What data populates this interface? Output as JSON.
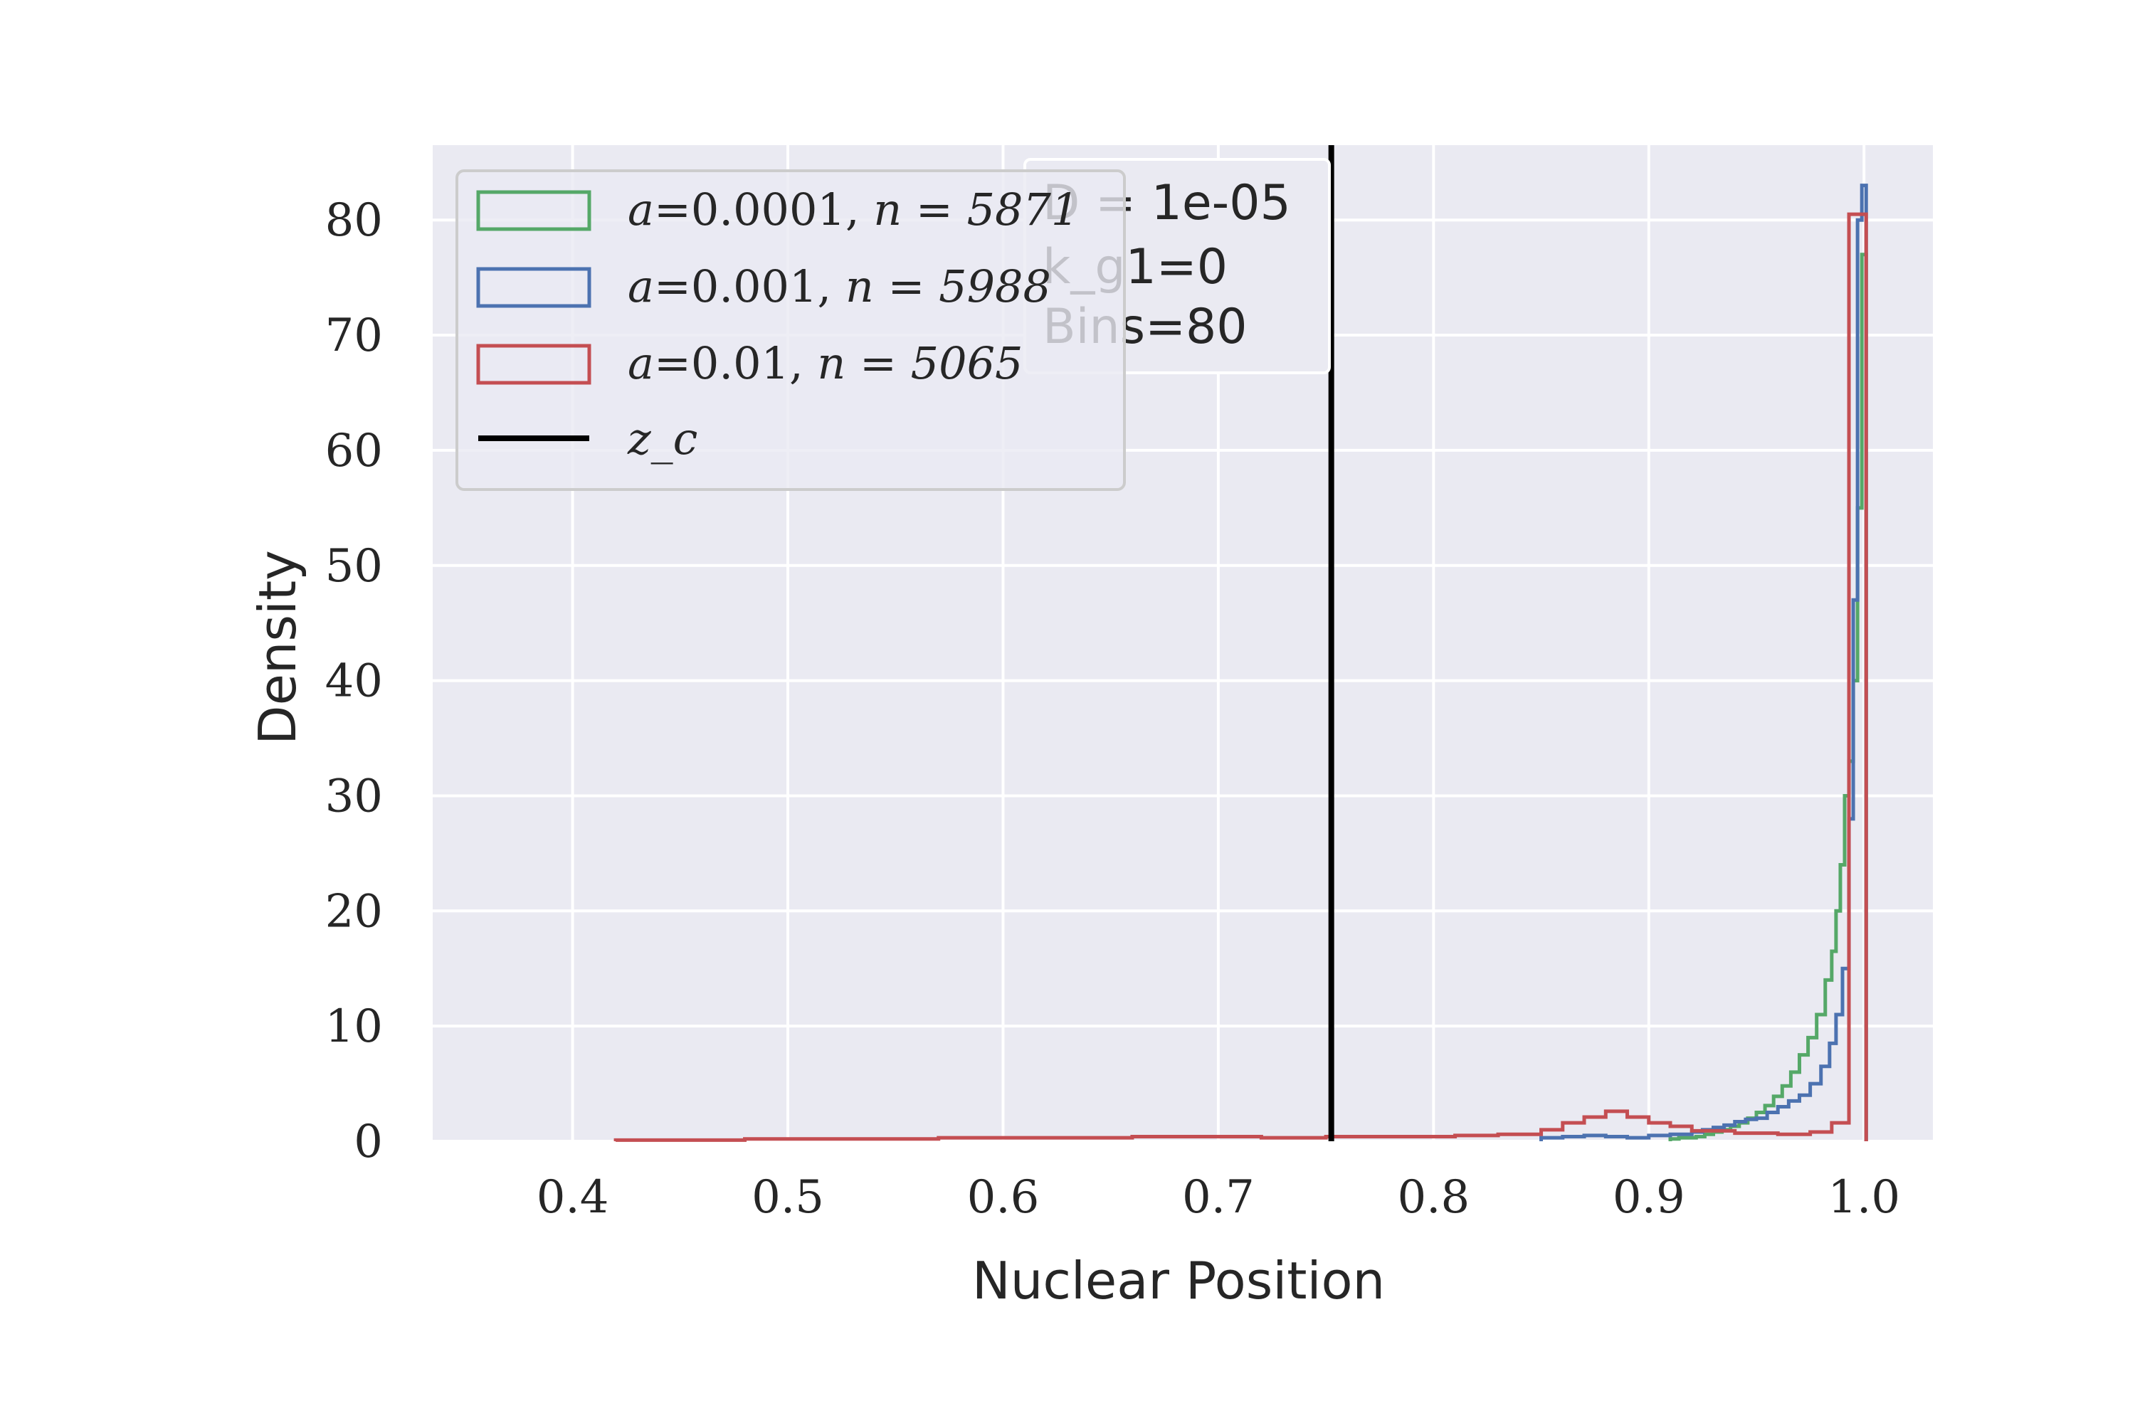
{
  "chart_data": {
    "type": "histogram",
    "xlabel": "Nuclear Position",
    "ylabel": "Density",
    "xlim": [
      0.335,
      1.032
    ],
    "ylim": [
      0,
      86.5
    ],
    "xticks": [
      0.4,
      0.5,
      0.6,
      0.7,
      0.8,
      0.9,
      1.0
    ],
    "xtick_labels": [
      "0.4",
      "0.5",
      "0.6",
      "0.7",
      "0.8",
      "0.9",
      "1.0"
    ],
    "yticks": [
      0,
      10,
      20,
      30,
      40,
      50,
      60,
      70,
      80
    ],
    "ytick_labels": [
      "0",
      "10",
      "20",
      "30",
      "40",
      "50",
      "60",
      "70",
      "80"
    ],
    "grid": true,
    "legend_position": "top-left",
    "annotation": [
      "D = 1e-05",
      "k_g1=0",
      "Bins=80"
    ],
    "vline": {
      "x": 0.7525,
      "name": "z_c",
      "color": "#000000"
    },
    "series": [
      {
        "name": "a=0.0001, n = 5871",
        "legend_var": "a",
        "legend_val": "=0.0001, ",
        "legend_n": "n = 5871",
        "color": "#55a868",
        "x": [
          0.91,
          0.914,
          0.918,
          0.922,
          0.926,
          0.93,
          0.934,
          0.938,
          0.942,
          0.946,
          0.95,
          0.954,
          0.958,
          0.962,
          0.966,
          0.97,
          0.974,
          0.978,
          0.982,
          0.985,
          0.987,
          0.989,
          0.991,
          0.993,
          0.995,
          0.997,
          0.999,
          1.001
        ],
        "y": [
          0.2,
          0.3,
          0.3,
          0.4,
          0.6,
          0.8,
          1.0,
          1.3,
          1.6,
          2.0,
          2.5,
          3.1,
          3.9,
          4.8,
          6.0,
          7.5,
          9.0,
          11.0,
          14.0,
          16.5,
          20.0,
          24.0,
          30.0,
          33.0,
          40.0,
          55.0,
          77.0,
          0
        ]
      },
      {
        "name": "a=0.001, n = 5988",
        "legend_var": "a",
        "legend_val": "=0.001, ",
        "legend_n": "n = 5988",
        "color": "#4c72b0",
        "x": [
          0.85,
          0.86,
          0.87,
          0.88,
          0.89,
          0.9,
          0.91,
          0.92,
          0.925,
          0.93,
          0.935,
          0.94,
          0.945,
          0.95,
          0.955,
          0.96,
          0.965,
          0.97,
          0.975,
          0.98,
          0.984,
          0.987,
          0.99,
          0.993,
          0.995,
          0.997,
          0.999,
          1.001
        ],
        "y": [
          0.3,
          0.4,
          0.5,
          0.4,
          0.3,
          0.5,
          0.6,
          0.8,
          1.0,
          1.2,
          1.4,
          1.7,
          1.9,
          2.0,
          2.5,
          3.0,
          3.5,
          4.0,
          5.0,
          6.5,
          8.5,
          11.0,
          15.0,
          28.0,
          47.0,
          80.0,
          83.0,
          0
        ]
      },
      {
        "name": "a=0.01, n = 5065",
        "legend_var": "a",
        "legend_val": "=0.01, ",
        "legend_n": "n = 5065",
        "color": "#c44e52",
        "x": [
          0.42,
          0.45,
          0.48,
          0.51,
          0.54,
          0.57,
          0.6,
          0.63,
          0.66,
          0.69,
          0.72,
          0.75,
          0.78,
          0.81,
          0.83,
          0.85,
          0.86,
          0.87,
          0.88,
          0.89,
          0.9,
          0.91,
          0.92,
          0.94,
          0.96,
          0.975,
          0.985,
          0.993,
          1.001
        ],
        "y": [
          0.1,
          0.1,
          0.2,
          0.2,
          0.2,
          0.3,
          0.3,
          0.3,
          0.4,
          0.4,
          0.3,
          0.4,
          0.4,
          0.5,
          0.6,
          1.0,
          1.6,
          2.1,
          2.6,
          2.1,
          1.6,
          1.3,
          0.9,
          0.7,
          0.6,
          0.8,
          1.6,
          80.5,
          0
        ]
      }
    ]
  }
}
